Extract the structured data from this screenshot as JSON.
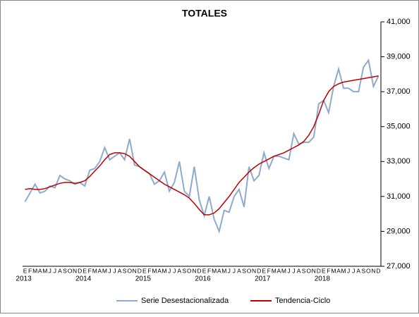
{
  "chart_data": {
    "type": "line",
    "title": "TOTALES",
    "categories": [
      "E",
      "F",
      "M",
      "A",
      "M",
      "J",
      "J",
      "A",
      "S",
      "O",
      "N",
      "D",
      "E",
      "F",
      "M",
      "A",
      "M",
      "J",
      "J",
      "A",
      "S",
      "O",
      "N",
      "D",
      "E",
      "F",
      "M",
      "A",
      "M",
      "J",
      "J",
      "A",
      "S",
      "O",
      "N",
      "D",
      "E",
      "F",
      "M",
      "A",
      "M",
      "J",
      "J",
      "A",
      "S",
      "O",
      "N",
      "D",
      "E",
      "F",
      "M",
      "A",
      "M",
      "J",
      "J",
      "A",
      "S",
      "O",
      "N",
      "D",
      "E",
      "F",
      "M",
      "A",
      "M",
      "J",
      "J",
      "A",
      "S",
      "O",
      "N",
      "D"
    ],
    "year_labels": [
      "2013",
      "2014",
      "2015",
      "2016",
      "2017",
      "2018"
    ],
    "series": [
      {
        "name": "Serie Desestacionalizada",
        "color": "#8eaacc",
        "values": [
          30700,
          31200,
          31700,
          31200,
          31300,
          31600,
          31500,
          32200,
          32000,
          31900,
          31700,
          31800,
          31600,
          32500,
          32600,
          33000,
          33800,
          33100,
          33300,
          33500,
          33100,
          34300,
          32800,
          32700,
          32500,
          32300,
          31700,
          31900,
          32400,
          31300,
          31800,
          33000,
          31300,
          31000,
          32700,
          30800,
          29900,
          31000,
          29700,
          29000,
          30200,
          30100,
          31000,
          31400,
          30400,
          32700,
          31900,
          32200,
          33500,
          32600,
          33300,
          33300,
          33200,
          33100,
          34600,
          34000,
          34100,
          34100,
          34400,
          36300,
          36500,
          35800,
          37300,
          38300,
          37200,
          37200,
          37000,
          37000,
          38400,
          38800,
          37300,
          37900
        ]
      },
      {
        "name": "Tendencia-Ciclo",
        "color": "#c00000",
        "values": [
          31400,
          31450,
          31400,
          31400,
          31450,
          31550,
          31650,
          31750,
          31800,
          31800,
          31750,
          31800,
          31900,
          32150,
          32450,
          32750,
          33100,
          33400,
          33500,
          33500,
          33450,
          33300,
          33000,
          32700,
          32500,
          32300,
          32100,
          31900,
          31700,
          31550,
          31400,
          31250,
          31100,
          30900,
          30600,
          30250,
          29950,
          29950,
          30050,
          30300,
          30650,
          31000,
          31400,
          31800,
          32100,
          32400,
          32650,
          32850,
          33000,
          33150,
          33300,
          33400,
          33500,
          33650,
          33800,
          33950,
          34150,
          34500,
          35000,
          35700,
          36500,
          37000,
          37300,
          37450,
          37550,
          37600,
          37650,
          37700,
          37750,
          37800,
          37850,
          37900
        ]
      }
    ],
    "ylim": [
      27000,
      41000
    ],
    "yticks": [
      {
        "value": 27000,
        "label": "27,000"
      },
      {
        "value": 29000,
        "label": "29,000"
      },
      {
        "value": 31000,
        "label": "31,000"
      },
      {
        "value": 33000,
        "label": "33,000"
      },
      {
        "value": 35000,
        "label": "35,000"
      },
      {
        "value": 37000,
        "label": "37,000"
      },
      {
        "value": 39000,
        "label": "39,000"
      },
      {
        "value": 41000,
        "label": "41,000"
      }
    ],
    "legend": "bottom"
  }
}
